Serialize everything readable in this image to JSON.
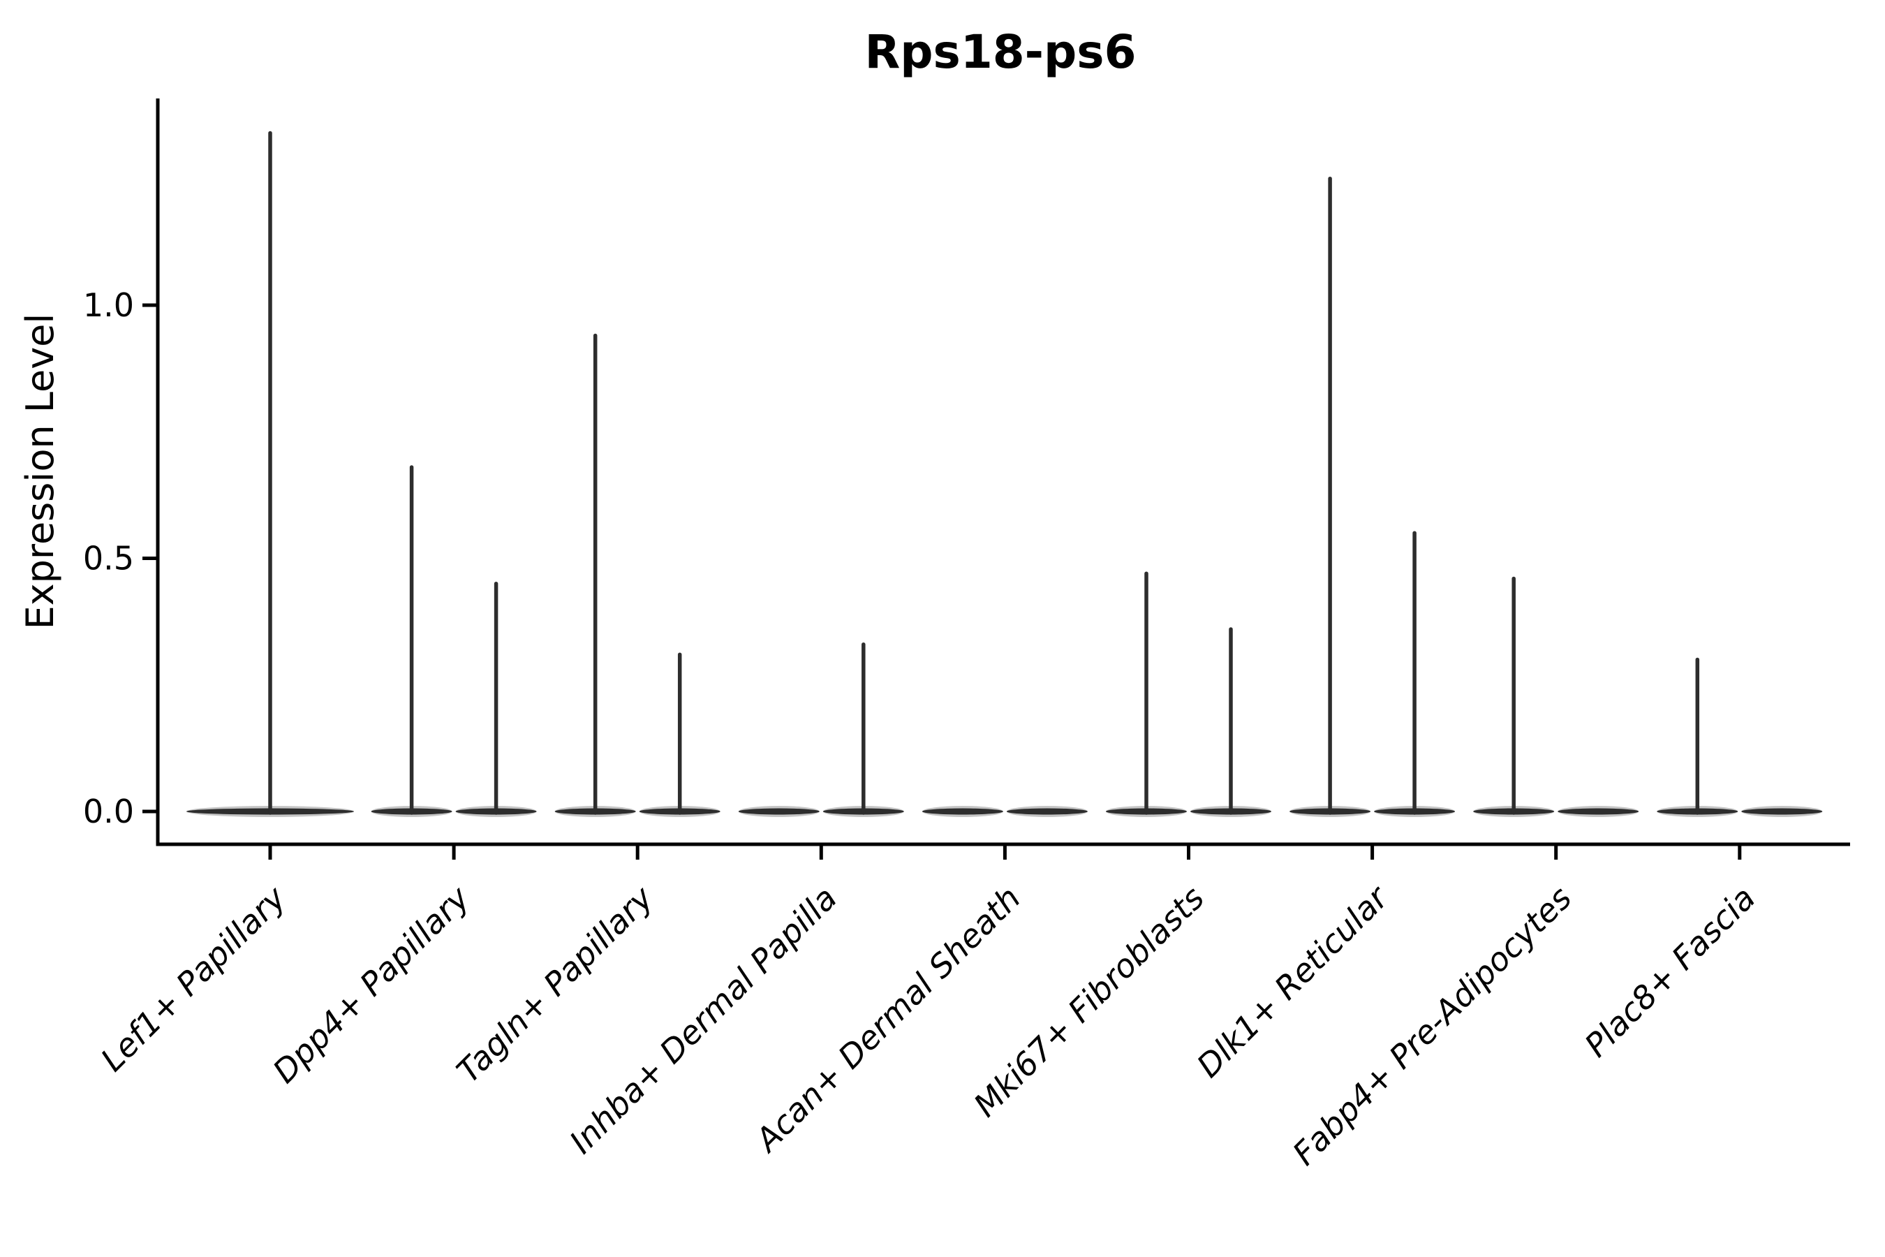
{
  "chart_data": {
    "type": "violin",
    "title": "Rps18-ps6",
    "xlabel": "",
    "ylabel": "Expression Level",
    "background": "#ffffff",
    "grid": false,
    "legend": null,
    "yticks": [
      {
        "label": "0.0",
        "value": 0.0
      },
      {
        "label": "0.5",
        "value": 0.5
      },
      {
        "label": "1.0",
        "value": 1.0
      }
    ],
    "ylim": [
      -0.065,
      1.41
    ],
    "categories": [
      "Lef1+ Papillary",
      "Dpp4+ Papillary",
      "Tagln+ Papillary",
      "Inhba+ Dermal Papilla",
      "Acan+ Dermal Sheath",
      "Mki67+ Fibroblasts",
      "Dlk1+ Reticular",
      "Fabp4+ Pre-Adipocytes",
      "Plac8+ Fascia"
    ],
    "violins": [
      {
        "category": "Lef1+ Papillary",
        "layout": "single",
        "groups": [
          {
            "max": 1.34
          }
        ]
      },
      {
        "category": "Dpp4+ Papillary",
        "layout": "split",
        "groups": [
          {
            "max": 0.68
          },
          {
            "max": 0.45
          }
        ]
      },
      {
        "category": "Tagln+ Papillary",
        "layout": "split",
        "groups": [
          {
            "max": 0.94
          },
          {
            "max": 0.31
          }
        ]
      },
      {
        "category": "Inhba+ Dermal Papilla",
        "layout": "split",
        "groups": [
          {
            "max": 0.0
          },
          {
            "max": 0.33
          }
        ]
      },
      {
        "category": "Acan+ Dermal Sheath",
        "layout": "split",
        "groups": [
          {
            "max": 0.0
          },
          {
            "max": 0.0
          }
        ]
      },
      {
        "category": "Mki67+ Fibroblasts",
        "layout": "split",
        "groups": [
          {
            "max": 0.47
          },
          {
            "max": 0.36
          }
        ]
      },
      {
        "category": "Dlk1+ Reticular",
        "layout": "split",
        "groups": [
          {
            "max": 1.25
          },
          {
            "max": 0.55
          }
        ]
      },
      {
        "category": "Fabp4+ Pre-Adipocytes",
        "layout": "split",
        "groups": [
          {
            "max": 0.46
          },
          {
            "max": 0.0
          }
        ]
      },
      {
        "category": "Plac8+ Fascia",
        "layout": "split",
        "groups": [
          {
            "max": 0.3
          },
          {
            "max": 0.0
          }
        ]
      }
    ],
    "colors": {
      "violin": "#2d2d2d",
      "axis": "#000000",
      "text": "#000000",
      "background": "#ffffff"
    }
  }
}
